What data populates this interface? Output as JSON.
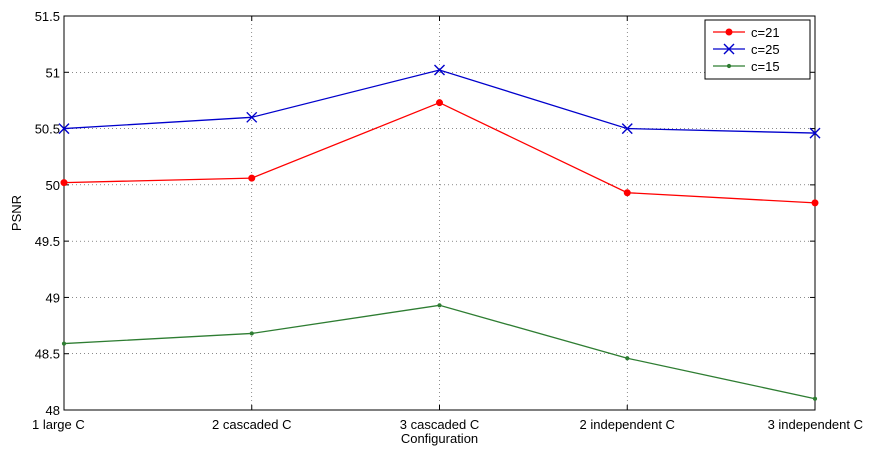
{
  "chart_data": {
    "type": "line",
    "title": "",
    "xlabel": "Configuration",
    "ylabel": "PSNR",
    "categories": [
      "1 large C",
      "2 cascaded C",
      "3 cascaded C",
      "2 independent C",
      "3 independent C"
    ],
    "ylim": [
      48,
      51.5
    ],
    "yticks": [
      "48",
      "48.5",
      "49",
      "49.5",
      "50",
      "50.5",
      "51",
      "51.5"
    ],
    "grid": true,
    "legend_position": "top-right",
    "series": [
      {
        "name": "c=21",
        "color": "#ff0000",
        "marker": "dot",
        "values": [
          50.02,
          50.06,
          50.73,
          49.93,
          49.84
        ]
      },
      {
        "name": "c=25",
        "color": "#0000cc",
        "marker": "x",
        "values": [
          50.5,
          50.6,
          51.02,
          50.5,
          50.46
        ]
      },
      {
        "name": "c=15",
        "color": "#2e7d32",
        "marker": "small-dot",
        "values": [
          48.59,
          48.68,
          48.93,
          48.46,
          48.1
        ]
      }
    ]
  }
}
